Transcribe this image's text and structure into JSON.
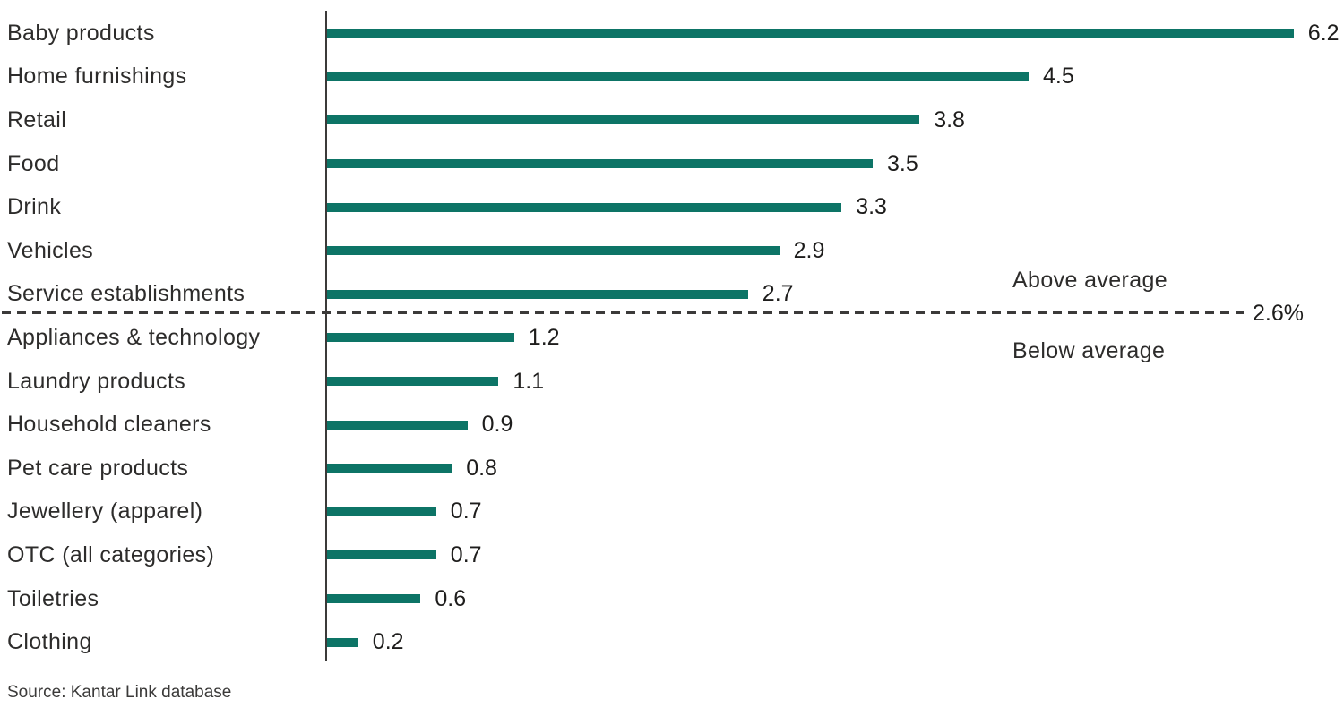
{
  "chart_data": {
    "type": "bar",
    "orientation": "horizontal",
    "categories": [
      "Baby products",
      "Home furnishings",
      "Retail",
      "Food",
      "Drink",
      "Vehicles",
      "Service establishments",
      "Appliances & technology",
      "Laundry products",
      "Household cleaners",
      "Pet care products",
      "Jewellery (apparel)",
      "OTC (all categories)",
      "Toiletries",
      "Clothing"
    ],
    "values": [
      6.2,
      4.5,
      3.8,
      3.5,
      3.3,
      2.9,
      2.7,
      1.2,
      1.1,
      0.9,
      0.8,
      0.7,
      0.7,
      0.6,
      0.2
    ],
    "value_labels": [
      "6.2",
      "4.5",
      "3.8",
      "3.5",
      "3.3",
      "2.9",
      "2.7",
      "1.2",
      "1.1",
      "0.9",
      "0.8",
      "0.7",
      "0.7",
      "0.6",
      "0.2"
    ],
    "average_line": {
      "value": 2.6,
      "label": "2.6%"
    },
    "annotations": {
      "above": "Above average",
      "below": "Below average"
    },
    "source": "Source: Kantar Link database",
    "bar_color": "#0d7466",
    "axis_color": "#3b3a39",
    "xlim": [
      0,
      6.5
    ],
    "grid": false,
    "legend": false
  }
}
